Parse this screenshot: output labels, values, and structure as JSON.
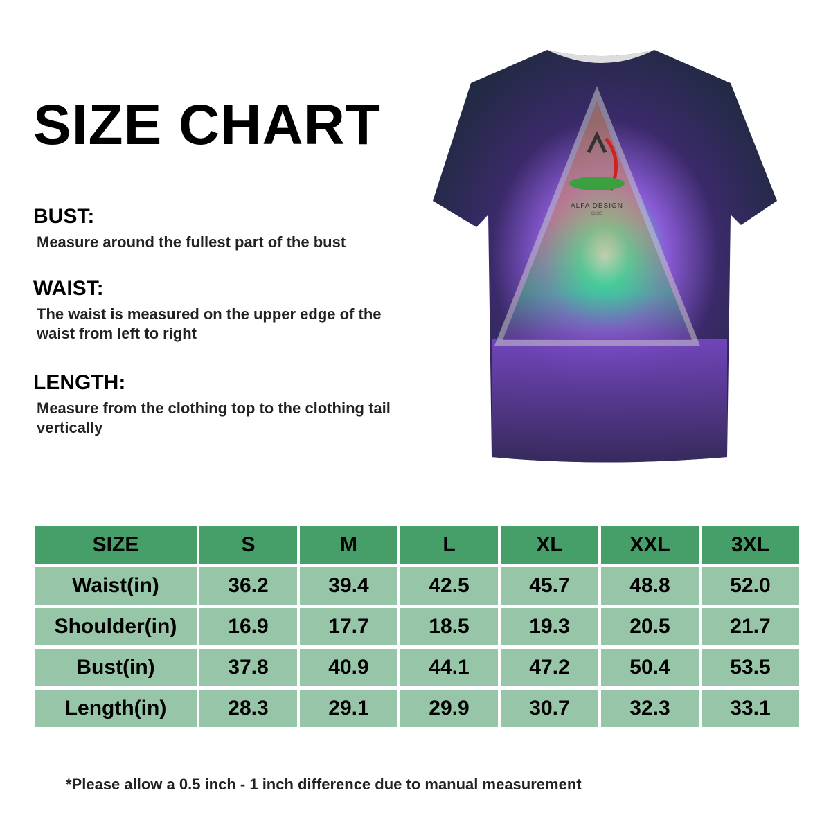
{
  "title": "SIZE CHART",
  "sections": [
    {
      "heading": "BUST:",
      "text": "Measure around the fullest part of the bust"
    },
    {
      "heading": "WAIST:",
      "text": "The waist is measured on the upper edge of the waist from left to right"
    },
    {
      "heading": "LENGTH:",
      "text": "Measure from the clothing top to the clothing tail vertically"
    }
  ],
  "product": {
    "logo_text": "ALFA DESIGN",
    "logo_subtext": "CLOS"
  },
  "colors": {
    "header_bg": "#469e69",
    "row_bg": "#96c6a7"
  },
  "table": {
    "headers": [
      "SIZE",
      "S",
      "M",
      "L",
      "XL",
      "XXL",
      "3XL"
    ],
    "rows": [
      [
        "Waist(in)",
        "36.2",
        "39.4",
        "42.5",
        "45.7",
        "48.8",
        "52.0"
      ],
      [
        "Shoulder(in)",
        "16.9",
        "17.7",
        "18.5",
        "19.3",
        "20.5",
        "21.7"
      ],
      [
        "Bust(in)",
        "37.8",
        "40.9",
        "44.1",
        "47.2",
        "50.4",
        "53.5"
      ],
      [
        "Length(in)",
        "28.3",
        "29.1",
        "29.9",
        "30.7",
        "32.3",
        "33.1"
      ]
    ]
  },
  "note": "*Please allow a 0.5 inch - 1 inch difference due to manual measurement"
}
